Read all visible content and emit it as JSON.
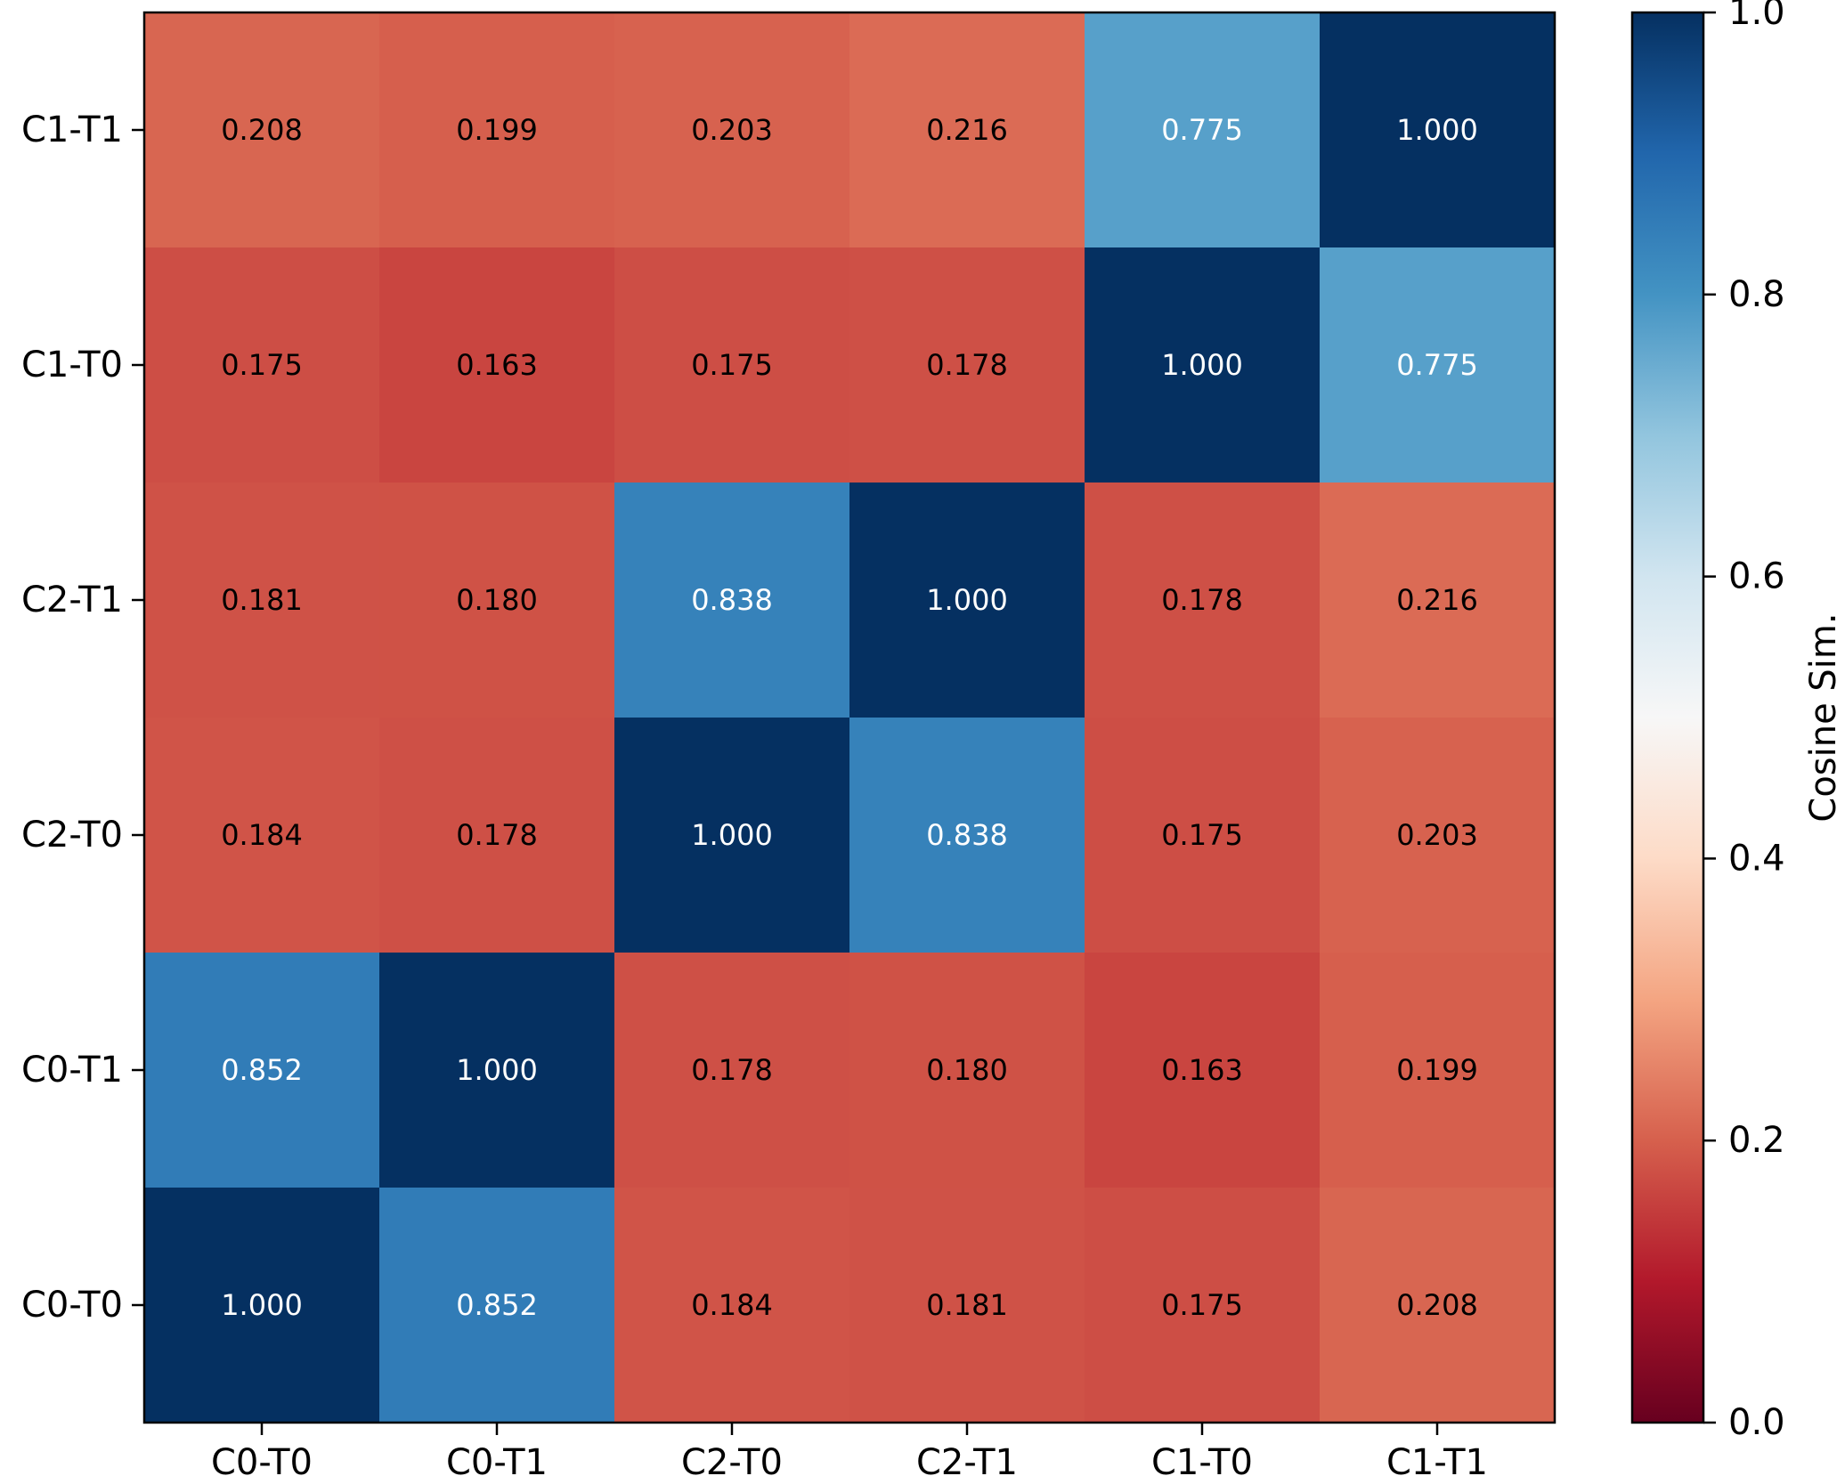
{
  "chart_data": {
    "type": "heatmap",
    "title": "",
    "xlabel": "",
    "ylabel": "",
    "x_categories": [
      "C0-T0",
      "C0-T1",
      "C2-T0",
      "C2-T1",
      "C1-T0",
      "C1-T1"
    ],
    "y_categories_top_to_bottom": [
      "C1-T1",
      "C1-T0",
      "C2-T1",
      "C2-T0",
      "C0-T1",
      "C0-T0"
    ],
    "matrix_top_to_bottom": [
      [
        0.208,
        0.199,
        0.203,
        0.216,
        0.775,
        1.0
      ],
      [
        0.175,
        0.163,
        0.175,
        0.178,
        1.0,
        0.775
      ],
      [
        0.181,
        0.18,
        0.838,
        1.0,
        0.178,
        0.216
      ],
      [
        0.184,
        0.178,
        1.0,
        0.838,
        0.175,
        0.203
      ],
      [
        0.852,
        1.0,
        0.178,
        0.18,
        0.163,
        0.199
      ],
      [
        1.0,
        0.852,
        0.184,
        0.181,
        0.175,
        0.208
      ]
    ],
    "value_format_decimals": 3,
    "colorbar": {
      "label": "Cosine Sim.",
      "vmin": 0.0,
      "vmax": 1.0,
      "ticks": [
        0.0,
        0.2,
        0.4,
        0.6,
        0.8,
        1.0
      ],
      "tick_labels": [
        "0.0",
        "0.2",
        "0.4",
        "0.6",
        "0.8",
        "1.0"
      ],
      "colormap": "RdBu",
      "colormap_stops": [
        "#67001f",
        "#b2182b",
        "#d6604d",
        "#f4a582",
        "#fddbc7",
        "#f7f7f7",
        "#d1e5f0",
        "#92c5de",
        "#4393c3",
        "#2166ac",
        "#053061"
      ]
    },
    "text_colors": {
      "light_cells": "#000000",
      "dark_cells": "#ffffff"
    }
  }
}
